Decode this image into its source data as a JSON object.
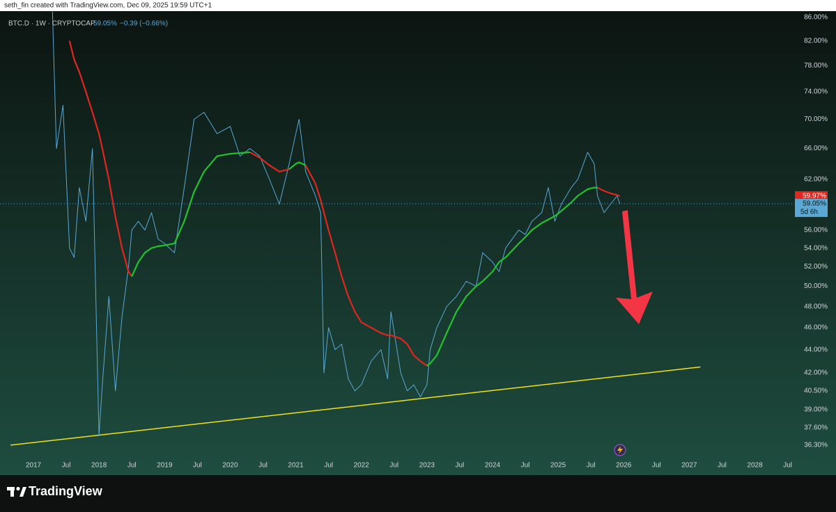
{
  "attribution": "seth_fin created with TradingView.com, Dec 09, 2025 19:59 UTC+1",
  "brand": "TradingView",
  "chart_data": {
    "type": "line",
    "log_scale": true,
    "legend_value": "59.05%",
    "legend_change": "−0.39 (−0.66%)",
    "xlim": [
      2016.49,
      2028.6
    ],
    "xticks": [
      2017,
      {
        "value": 2017.5,
        "label": "Jul"
      },
      2018,
      {
        "value": 2018.5,
        "label": "Jul"
      },
      2019,
      {
        "value": 2019.5,
        "label": "Jul"
      },
      2020,
      {
        "value": 2020.5,
        "label": "Jul"
      },
      2021,
      {
        "value": 2021.5,
        "label": "Jul"
      },
      2022,
      {
        "value": 2022.5,
        "label": "Jul"
      },
      2023,
      {
        "value": 2023.5,
        "label": "Jul"
      },
      2024,
      {
        "value": 2024.5,
        "label": "Jul"
      },
      2025,
      {
        "value": 2025.5,
        "label": "Jul"
      },
      2026,
      {
        "value": 2026.5,
        "label": "Jul"
      },
      2027,
      {
        "value": 2027.5,
        "label": "Jul"
      },
      2028,
      {
        "value": 2028.5,
        "label": "Jul"
      }
    ],
    "ylim": [
      34.9,
      87.3
    ],
    "yticks": [
      {
        "value": 86,
        "label": "86.00%"
      },
      {
        "value": 82,
        "label": "82.00%"
      },
      {
        "value": 78,
        "label": "78.00%"
      },
      {
        "value": 74,
        "label": "74.00%"
      },
      {
        "value": 70,
        "label": "70.00%"
      },
      {
        "value": 66,
        "label": "66.00%"
      },
      {
        "value": 62,
        "label": "62.00%"
      },
      {
        "value": 56,
        "label": "56.00%"
      },
      {
        "value": 54,
        "label": "54.00%"
      },
      {
        "value": 52,
        "label": "52.00%"
      },
      {
        "value": 50,
        "label": "50.00%"
      },
      {
        "value": 48,
        "label": "48.00%"
      },
      {
        "value": 46,
        "label": "46.00%"
      },
      {
        "value": 44,
        "label": "44.00%"
      },
      {
        "value": 42,
        "label": "42.00%"
      },
      {
        "value": 40.5,
        "label": "40.50%"
      },
      {
        "value": 39,
        "label": "39.00%"
      },
      {
        "value": 37.6,
        "label": "37.60%"
      },
      {
        "value": 36.3,
        "label": "36.30%"
      }
    ],
    "x": [
      2017.29,
      2017.35,
      2017.45,
      2017.55,
      2017.62,
      2017.7,
      2017.8,
      2017.9,
      2018.0,
      2018.05,
      2018.15,
      2018.25,
      2018.35,
      2018.45,
      2018.5,
      2018.6,
      2018.7,
      2018.8,
      2018.9,
      2019.0,
      2019.15,
      2019.3,
      2019.45,
      2019.6,
      2019.8,
      2020.0,
      2020.15,
      2020.3,
      2020.45,
      2020.6,
      2020.75,
      2020.9,
      2021.0,
      2021.05,
      2021.15,
      2021.3,
      2021.38,
      2021.43,
      2021.5,
      2021.6,
      2021.7,
      2021.8,
      2021.9,
      2022.0,
      2022.15,
      2022.3,
      2022.4,
      2022.45,
      2022.6,
      2022.7,
      2022.8,
      2022.9,
      2023.0,
      2023.05,
      2023.15,
      2023.3,
      2023.45,
      2023.6,
      2023.75,
      2023.85,
      2024.0,
      2024.1,
      2024.2,
      2024.4,
      2024.5,
      2024.6,
      2024.75,
      2024.85,
      2024.95,
      2025.05,
      2025.2,
      2025.3,
      2025.45,
      2025.55,
      2025.6,
      2025.7,
      2025.8,
      2025.9,
      2025.94
    ],
    "series": [
      {
        "name": "BTC.D · 1W · CRYPTOCAP",
        "color": "#5ba8d4",
        "last_label": "59.05%",
        "countdown": "5d 6h",
        "values": [
          87,
          66,
          72,
          54,
          53,
          61,
          57,
          66,
          37,
          41,
          49,
          40.5,
          47,
          52,
          56,
          57,
          56,
          58,
          55,
          54.5,
          53.5,
          61,
          70,
          71,
          68,
          69,
          65,
          66,
          65,
          62,
          59,
          64,
          68,
          70,
          63,
          60,
          58,
          42,
          46,
          44,
          44.5,
          41.5,
          40.5,
          41,
          43,
          44,
          41.5,
          47.5,
          42,
          40.5,
          41,
          40,
          41,
          44,
          46,
          48,
          49,
          50.5,
          50,
          53.5,
          52.5,
          51.5,
          54,
          56,
          55.5,
          57,
          58,
          61,
          57,
          59,
          61,
          62,
          65.5,
          64,
          60,
          58,
          59,
          60,
          59.05
        ]
      },
      {
        "color": "#e0261f",
        "last_label": "59.97%",
        "values": [
          null,
          null,
          null,
          82,
          79,
          77,
          74,
          71,
          68,
          66,
          62,
          57.5,
          54,
          51.5,
          51,
          null,
          null,
          null,
          null,
          null,
          null,
          null,
          null,
          null,
          null,
          null,
          null,
          65.5,
          64.8,
          63.8,
          63,
          63.3,
          null,
          null,
          63.8,
          61.5,
          59.5,
          58,
          56,
          53.5,
          51,
          49,
          47.5,
          46.5,
          46,
          45.5,
          45.3,
          45.3,
          45,
          44.5,
          43.5,
          43,
          42.6,
          null,
          null,
          null,
          null,
          null,
          null,
          null,
          null,
          null,
          null,
          null,
          null,
          null,
          null,
          null,
          null,
          null,
          null,
          null,
          null,
          null,
          61,
          60.6,
          60.3,
          60.1,
          59.97
        ]
      },
      {
        "color": "#22c32e",
        "values": [
          null,
          null,
          null,
          null,
          null,
          null,
          null,
          null,
          null,
          null,
          null,
          null,
          null,
          null,
          51,
          52.5,
          53.5,
          54,
          54.2,
          54.3,
          54.5,
          57,
          60.5,
          63,
          65,
          65.3,
          65.4,
          65.5,
          null,
          null,
          null,
          63.3,
          64,
          64.2,
          63.8,
          null,
          null,
          null,
          null,
          null,
          null,
          null,
          null,
          null,
          null,
          null,
          null,
          null,
          null,
          null,
          null,
          null,
          42.6,
          42.8,
          43.5,
          45.5,
          47.5,
          49,
          50,
          50.5,
          51.5,
          52.5,
          53,
          54.5,
          55.2,
          56,
          56.8,
          57.2,
          57.6,
          58.2,
          59.2,
          60,
          60.8,
          61,
          61,
          null,
          null,
          null,
          null
        ]
      }
    ],
    "trendline": {
      "color": "#f2e21a",
      "x": [
        2016.65,
        2027.17
      ],
      "values": [
        36.3,
        42.5
      ]
    }
  }
}
